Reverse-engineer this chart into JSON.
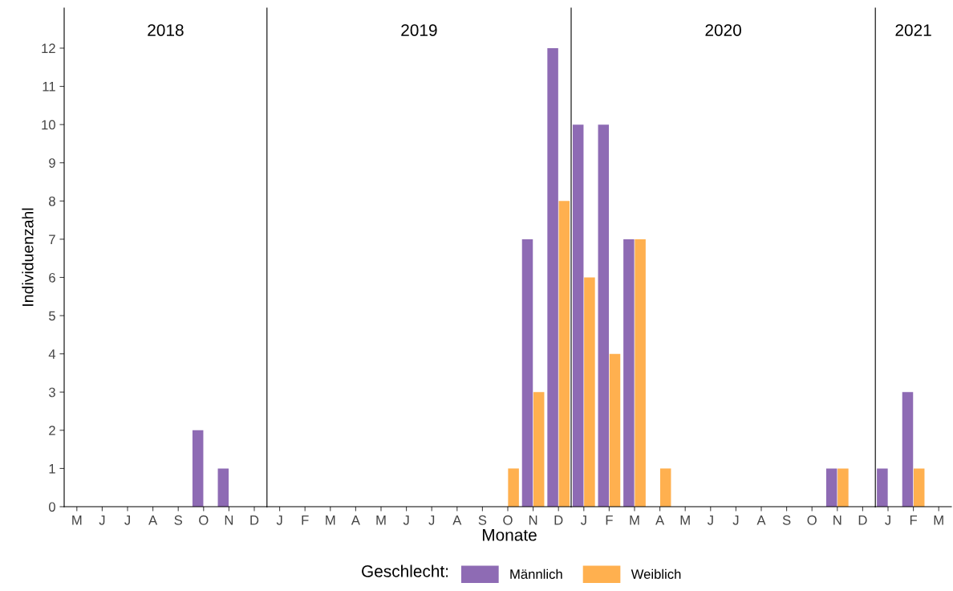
{
  "chart_data": [
    {
      "type": "bar",
      "title": "2018",
      "ylabel": "Individuenzahl",
      "legend_title": "Geschlecht:",
      "legend": "bottom",
      "grid": false,
      "categories": [
        "M",
        "J",
        "J",
        "A",
        "S",
        "O",
        "N",
        "D"
      ],
      "ylim": [
        0,
        13.05
      ],
      "yticks": [
        0,
        1,
        2,
        3,
        4,
        5,
        6,
        7,
        8,
        9,
        10,
        11,
        12
      ],
      "series": [
        {
          "name": "Männlich",
          "color": "#8e6bb4",
          "values": [
            0,
            0,
            0,
            0,
            0,
            2,
            1,
            0
          ]
        },
        {
          "name": "Weiblich",
          "color": "#ffb04f",
          "values": [
            0,
            0,
            0,
            0,
            0,
            0,
            0,
            0
          ]
        }
      ]
    },
    {
      "type": "bar",
      "title": "2019",
      "xlabel": "Monate",
      "grid": false,
      "tick_labels": "x",
      "categories": [
        "J",
        "F",
        "M",
        "A",
        "M",
        "J",
        "J",
        "A",
        "S",
        "O",
        "N",
        "D"
      ],
      "ylim": [
        0,
        13.05
      ],
      "yticks": [
        0,
        1,
        2,
        3,
        4,
        5,
        6,
        7,
        8,
        9,
        10,
        11,
        12
      ],
      "series": [
        {
          "color": "#8e6bb4",
          "values": [
            0,
            0,
            0,
            0,
            0,
            0,
            0,
            0,
            0,
            0,
            7,
            12
          ]
        },
        {
          "color": "#ffb04f",
          "values": [
            0,
            0,
            0,
            0,
            0,
            0,
            0,
            0,
            0,
            1,
            3,
            8
          ]
        }
      ]
    },
    {
      "type": "bar",
      "title": "2020",
      "grid": false,
      "tick_labels": "x",
      "categories": [
        "J",
        "F",
        "M",
        "A",
        "M",
        "J",
        "J",
        "A",
        "S",
        "O",
        "N",
        "D"
      ],
      "ylim": [
        0,
        13.05
      ],
      "yticks": [
        0,
        1,
        2,
        3,
        4,
        5,
        6,
        7,
        8,
        9,
        10,
        11,
        12
      ],
      "series": [
        {
          "color": "#8e6bb4",
          "values": [
            10,
            10,
            7,
            0,
            0,
            0,
            0,
            0,
            0,
            0,
            1,
            0
          ]
        },
        {
          "color": "#ffb04f",
          "values": [
            6,
            4,
            7,
            1,
            0,
            0,
            0,
            0,
            0,
            0,
            1,
            0
          ]
        }
      ]
    },
    {
      "type": "bar",
      "title": "2021",
      "grid": false,
      "tick_labels": "x",
      "categories": [
        "J",
        "F",
        "M"
      ],
      "ylim": [
        0,
        13.05
      ],
      "yticks": [
        0,
        1,
        2,
        3,
        4,
        5,
        6,
        7,
        8,
        9,
        10,
        11,
        12
      ],
      "series": [
        {
          "color": "#8e6bb4",
          "values": [
            1,
            3,
            0
          ]
        },
        {
          "color": "#ffb04f",
          "values": [
            0,
            1,
            0
          ]
        }
      ]
    }
  ]
}
